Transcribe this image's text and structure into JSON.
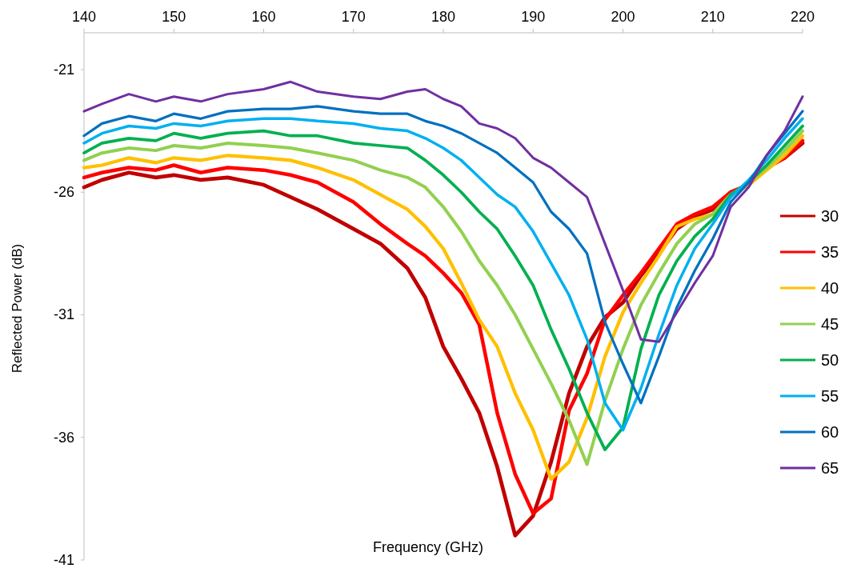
{
  "chart_data": {
    "type": "line",
    "xlabel": "Frequency (GHz)",
    "ylabel": "Reflected Power (dB)",
    "x": [
      140,
      142,
      145,
      148,
      150,
      153,
      156,
      160,
      163,
      166,
      170,
      173,
      176,
      178,
      180,
      182,
      184,
      186,
      188,
      190,
      192,
      194,
      196,
      198,
      200,
      202,
      204,
      206,
      208,
      210,
      212,
      214,
      216,
      218,
      220
    ],
    "xlim": [
      140,
      220
    ],
    "xticks": [
      140,
      150,
      160,
      170,
      180,
      190,
      200,
      210,
      220
    ],
    "ylim": [
      -41,
      -19.5
    ],
    "yticks": [
      -41,
      -36,
      -31,
      -26,
      -21
    ],
    "grid": false,
    "legend": "right",
    "marker": "none",
    "line_style": "solid",
    "series": [
      {
        "name": "30",
        "color": "#c00000",
        "values": [
          -25.8,
          -25.5,
          -25.2,
          -25.4,
          -25.3,
          -25.5,
          -25.4,
          -25.7,
          -26.2,
          -26.7,
          -27.5,
          -28.1,
          -29.1,
          -30.3,
          -32.3,
          -33.6,
          -35.0,
          -37.2,
          -40.0,
          -39.2,
          -37.0,
          -34.2,
          -32.3,
          -31.1,
          -30.5,
          -29.4,
          -28.5,
          -27.5,
          -27.0,
          -26.7,
          -26.0,
          -25.7,
          -25.0,
          -24.6,
          -24.0
        ]
      },
      {
        "name": "35",
        "color": "#ff0000",
        "values": [
          -25.4,
          -25.2,
          -25.0,
          -25.1,
          -24.9,
          -25.2,
          -25.0,
          -25.1,
          -25.3,
          -25.6,
          -26.4,
          -27.3,
          -28.1,
          -28.6,
          -29.3,
          -30.1,
          -31.4,
          -35.0,
          -37.5,
          -39.1,
          -38.5,
          -34.9,
          -33.4,
          -31.2,
          -30.2,
          -29.3,
          -28.3,
          -27.3,
          -26.9,
          -26.6,
          -26.0,
          -25.7,
          -25.0,
          -24.6,
          -23.9
        ]
      },
      {
        "name": "40",
        "color": "#ffc000",
        "values": [
          -25.0,
          -24.9,
          -24.6,
          -24.8,
          -24.6,
          -24.7,
          -24.5,
          -24.6,
          -24.7,
          -25.0,
          -25.5,
          -26.1,
          -26.7,
          -27.4,
          -28.3,
          -29.7,
          -31.2,
          -32.3,
          -34.2,
          -35.7,
          -37.7,
          -37.0,
          -35.2,
          -32.7,
          -30.9,
          -29.7,
          -28.6,
          -27.4,
          -27.1,
          -26.9,
          -26.1,
          -25.7,
          -25.1,
          -24.5,
          -23.7
        ]
      },
      {
        "name": "45",
        "color": "#92d050",
        "values": [
          -24.7,
          -24.4,
          -24.2,
          -24.3,
          -24.1,
          -24.2,
          -24.0,
          -24.1,
          -24.2,
          -24.4,
          -24.7,
          -25.1,
          -25.4,
          -25.8,
          -26.6,
          -27.6,
          -28.8,
          -29.8,
          -31.0,
          -32.4,
          -33.8,
          -35.3,
          -37.1,
          -34.5,
          -32.4,
          -30.6,
          -29.3,
          -28.1,
          -27.3,
          -26.9,
          -26.1,
          -25.6,
          -25.0,
          -24.3,
          -23.5
        ]
      },
      {
        "name": "50",
        "color": "#00b050",
        "values": [
          -24.4,
          -24.0,
          -23.8,
          -23.9,
          -23.6,
          -23.8,
          -23.6,
          -23.5,
          -23.7,
          -23.7,
          -24.0,
          -24.1,
          -24.2,
          -24.7,
          -25.3,
          -26.0,
          -26.8,
          -27.5,
          -28.6,
          -29.8,
          -31.6,
          -33.2,
          -35.0,
          -36.5,
          -35.6,
          -32.4,
          -30.2,
          -28.8,
          -27.8,
          -27.1,
          -26.1,
          -25.6,
          -24.9,
          -24.1,
          -23.3
        ]
      },
      {
        "name": "55",
        "color": "#00b0f0",
        "values": [
          -24.0,
          -23.6,
          -23.3,
          -23.4,
          -23.2,
          -23.3,
          -23.1,
          -23.0,
          -23.0,
          -23.1,
          -23.2,
          -23.4,
          -23.5,
          -23.8,
          -24.2,
          -24.7,
          -25.4,
          -26.1,
          -26.6,
          -27.6,
          -28.9,
          -30.2,
          -32.0,
          -34.6,
          -35.7,
          -34.0,
          -31.8,
          -29.8,
          -28.3,
          -27.3,
          -26.2,
          -25.5,
          -24.7,
          -23.8,
          -23.0
        ]
      },
      {
        "name": "60",
        "color": "#0070c0",
        "values": [
          -23.7,
          -23.2,
          -22.9,
          -23.1,
          -22.8,
          -23.0,
          -22.7,
          -22.6,
          -22.6,
          -22.5,
          -22.7,
          -22.8,
          -22.8,
          -23.1,
          -23.3,
          -23.6,
          -24.0,
          -24.4,
          -25.0,
          -25.6,
          -26.8,
          -27.5,
          -28.5,
          -31.3,
          -33.0,
          -34.6,
          -32.7,
          -30.7,
          -29.2,
          -27.9,
          -26.4,
          -25.6,
          -24.5,
          -23.6,
          -22.7
        ]
      },
      {
        "name": "65",
        "color": "#7030a0",
        "values": [
          -22.7,
          -22.4,
          -22.0,
          -22.3,
          -22.1,
          -22.3,
          -22.0,
          -21.8,
          -21.5,
          -21.9,
          -22.1,
          -22.2,
          -21.9,
          -21.8,
          -22.2,
          -22.5,
          -23.2,
          -23.4,
          -23.8,
          -24.6,
          -25.0,
          -25.6,
          -26.2,
          -28.1,
          -30.0,
          -32.0,
          -32.1,
          -30.9,
          -29.7,
          -28.6,
          -26.6,
          -25.8,
          -24.5,
          -23.5,
          -22.1
        ]
      }
    ]
  }
}
